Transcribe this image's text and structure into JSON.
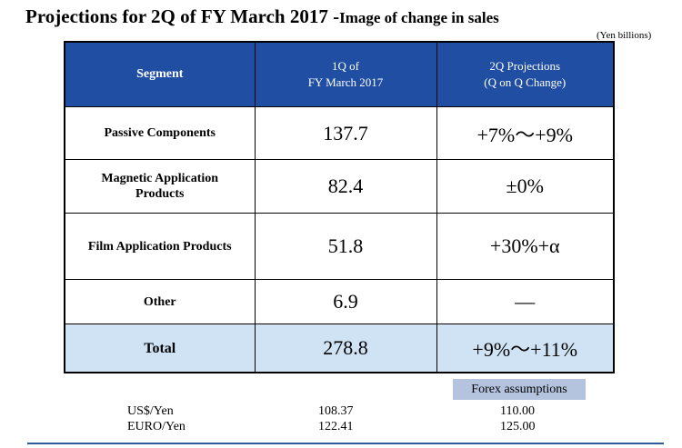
{
  "header": {
    "title_main": "Projections for 2Q of FY March 2017 -",
    "title_sub": "Image of change in sales",
    "unit_note": "(Yen billions)"
  },
  "table": {
    "columns": [
      "Segment",
      "1Q of",
      "FY March 2017",
      "2Q Projections",
      "(Q on Q Change)"
    ],
    "rows": [
      {
        "segment": "Passive Components",
        "q1": "137.7",
        "proj": "+7%〜+9%"
      },
      {
        "segment_line1": "Magnetic Application",
        "segment_line2": "Products",
        "q1": "82.4",
        "proj": "±0%"
      },
      {
        "segment": "Film Application Products",
        "q1": "51.8",
        "proj": "+30%+α"
      },
      {
        "segment": "Other",
        "q1": "6.9",
        "proj": "—"
      },
      {
        "segment": "Total",
        "q1": "278.8",
        "proj": "+9%〜+11%"
      }
    ],
    "colors": {
      "header_bg": "#1f4ea3",
      "total_bg": "#cfe3f5"
    }
  },
  "forex": {
    "label": "Forex assumptions",
    "rows": [
      {
        "name": "US$/Yen",
        "q1": "108.37",
        "assumption": "110.00"
      },
      {
        "name": "EURO/Yen",
        "q1": "122.41",
        "assumption": "125.00"
      }
    ]
  }
}
